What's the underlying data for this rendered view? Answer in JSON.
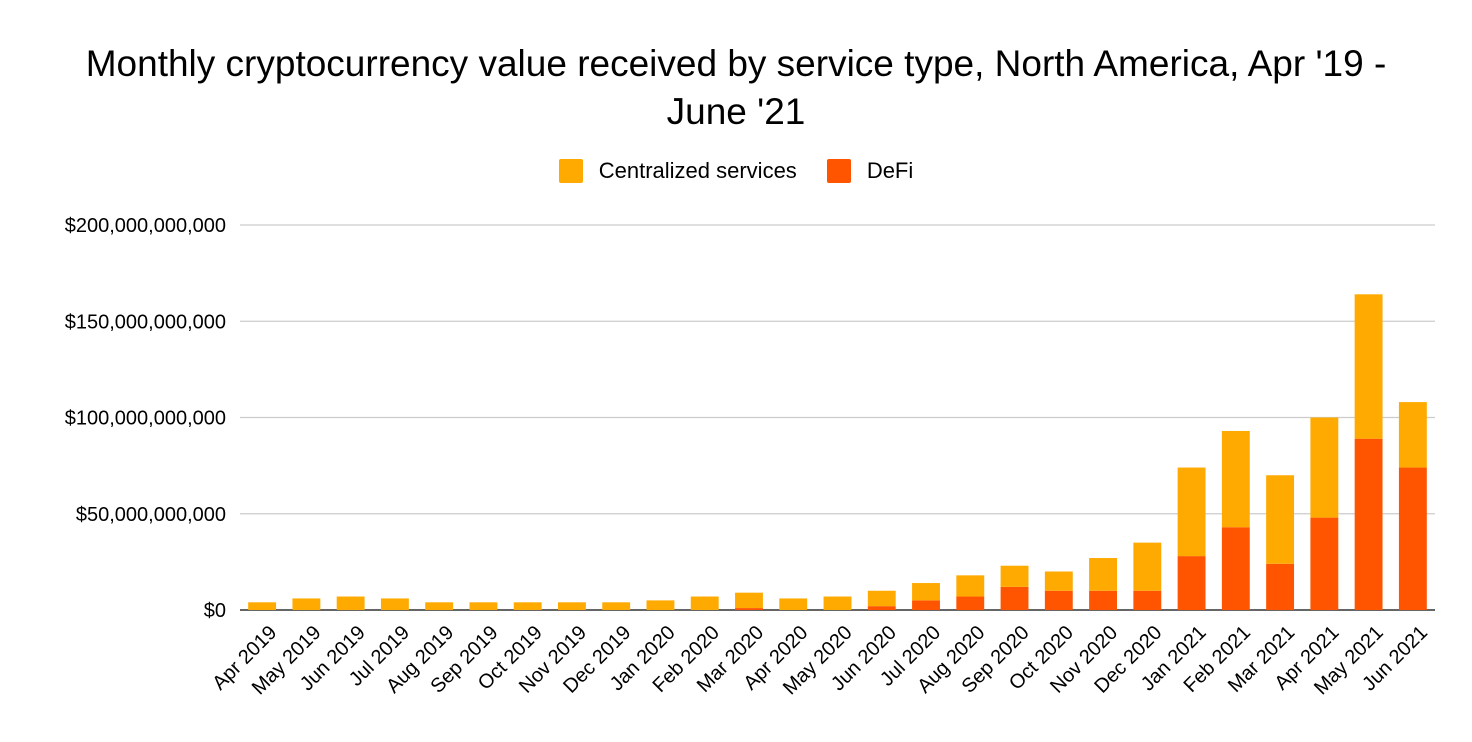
{
  "chart_data": {
    "type": "bar",
    "stacked": true,
    "title_line1": "Monthly cryptocurrency value received by service type, North America, Apr '19 -",
    "title_line2": "June '21",
    "categories": [
      "Apr 2019",
      "May 2019",
      "Jun 2019",
      "Jul 2019",
      "Aug 2019",
      "Sep 2019",
      "Oct 2019",
      "Nov 2019",
      "Dec 2019",
      "Jan 2020",
      "Feb 2020",
      "Mar 2020",
      "Apr 2020",
      "May 2020",
      "Jun 2020",
      "Jul 2020",
      "Aug 2020",
      "Sep 2020",
      "Oct 2020",
      "Nov 2020",
      "Dec 2020",
      "Jan 2021",
      "Feb 2021",
      "Mar 2021",
      "Apr 2021",
      "May 2021",
      "Jun 2021"
    ],
    "series": [
      {
        "name": "DeFi",
        "color": "#ff5500",
        "values": [
          0,
          0,
          0,
          0,
          0,
          0,
          0,
          0,
          0,
          0,
          0,
          1000000000,
          0,
          0,
          2000000000,
          5000000000,
          7000000000,
          12000000000,
          10000000000,
          10000000000,
          10000000000,
          28000000000,
          43000000000,
          24000000000,
          48000000000,
          89000000000,
          74000000000
        ]
      },
      {
        "name": "Centralized services",
        "color": "#ffaa00",
        "values": [
          4000000000,
          6000000000,
          7000000000,
          6000000000,
          4000000000,
          4000000000,
          4000000000,
          4000000000,
          4000000000,
          5000000000,
          7000000000,
          8000000000,
          6000000000,
          7000000000,
          8000000000,
          9000000000,
          11000000000,
          11000000000,
          10000000000,
          17000000000,
          25000000000,
          46000000000,
          50000000000,
          46000000000,
          52000000000,
          75000000000,
          34000000000
        ]
      }
    ],
    "legend": [
      "Centralized services",
      "DeFi"
    ],
    "yticks": [
      0,
      50000000000,
      100000000000,
      150000000000,
      200000000000
    ],
    "ytick_labels": [
      "$0",
      "$50,000,000,000",
      "$100,000,000,000",
      "$150,000,000,000",
      "$200,000,000,000"
    ],
    "ylim": [
      0,
      200000000000
    ],
    "xlabel": "",
    "ylabel": "",
    "grid": true,
    "legend_position": "top"
  }
}
